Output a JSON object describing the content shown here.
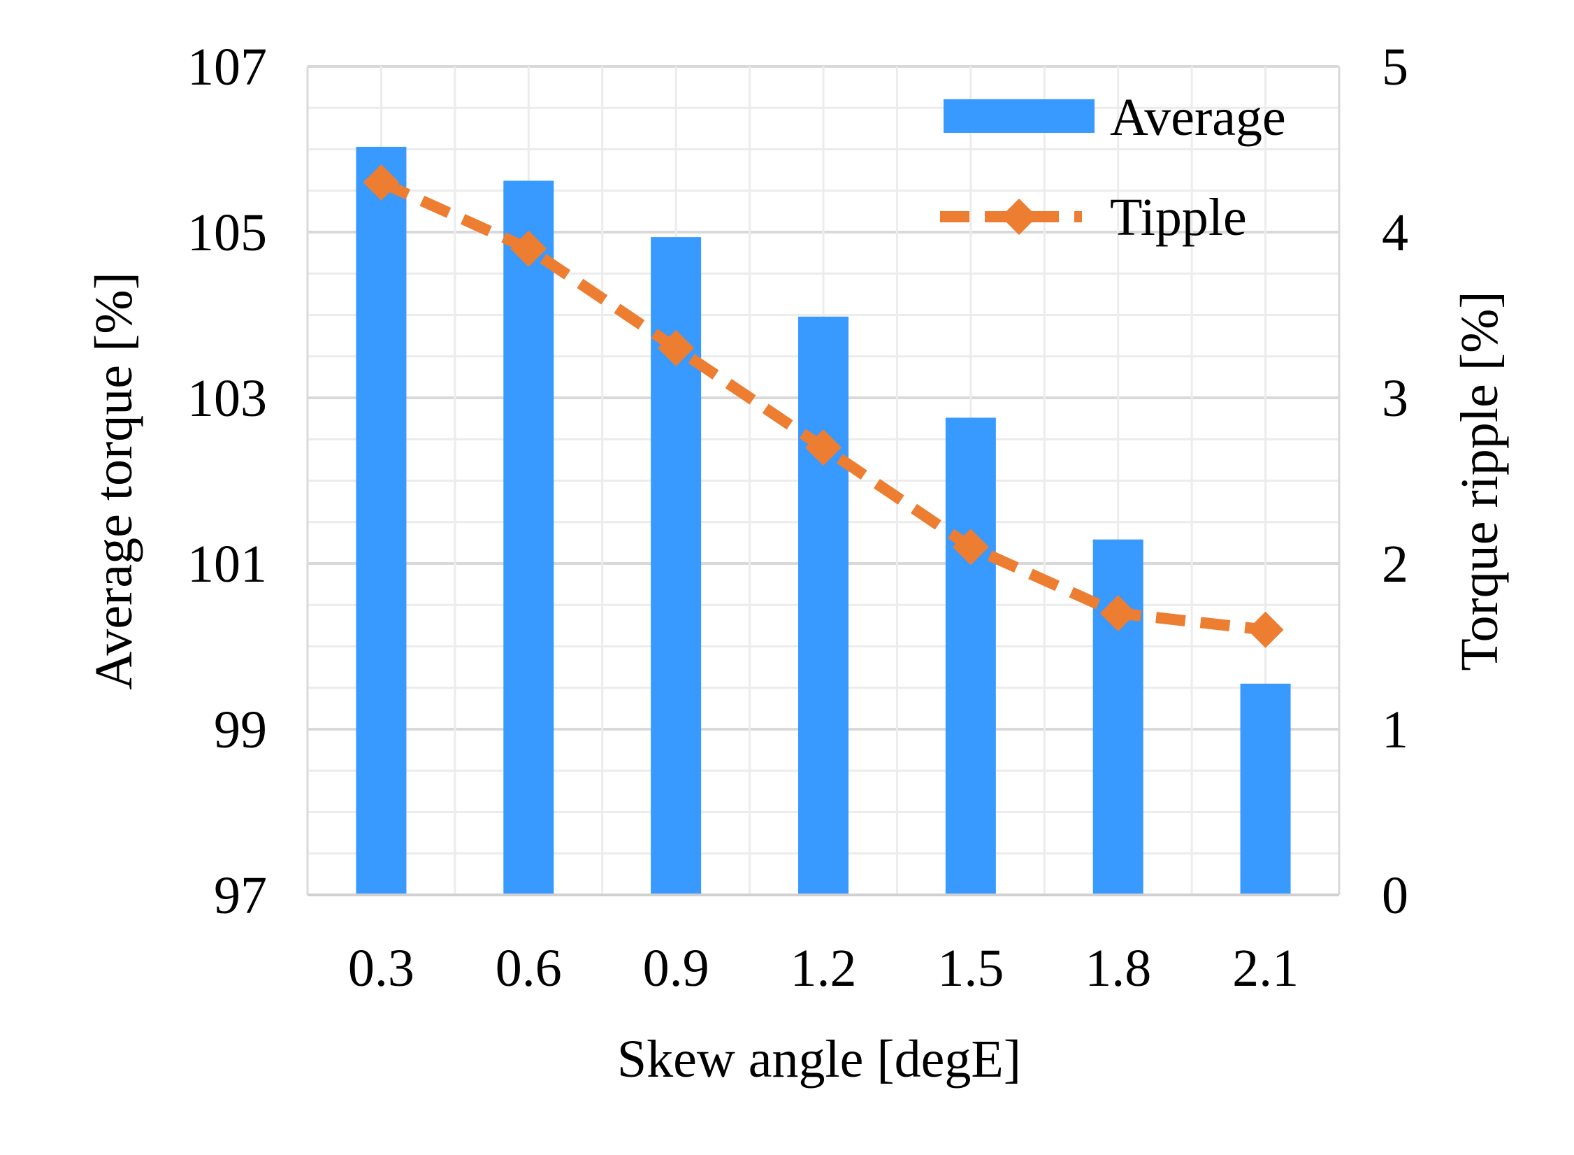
{
  "chart_data": {
    "type": "bar+line",
    "xlabel": "Skew angle [degE]",
    "ylabel_left": "Average torque [%]",
    "ylabel_right": "Torque ripple [%]",
    "categories": [
      "0.3",
      "0.6",
      "0.9",
      "1.2",
      "1.5",
      "1.8",
      "2.1"
    ],
    "ylim_left": [
      97,
      107
    ],
    "yticks_left": [
      "97",
      "99",
      "101",
      "103",
      "105",
      "107"
    ],
    "ylim_right": [
      0,
      5
    ],
    "yticks_right": [
      "0",
      "1",
      "2",
      "3",
      "4",
      "5"
    ],
    "grid": true,
    "legend_position": "top-right",
    "series": [
      {
        "name": "Average",
        "type": "bar",
        "axis": "left",
        "color": "#3899FF",
        "values": [
          106.03,
          105.62,
          104.94,
          103.98,
          102.76,
          101.29,
          99.55
        ]
      },
      {
        "name": "Tipple",
        "type": "line",
        "style": "dashed",
        "marker": "diamond",
        "axis": "right",
        "color": "#ED7D31",
        "values": [
          4.3,
          3.9,
          3.3,
          2.7,
          2.1,
          1.7,
          1.6
        ]
      }
    ]
  }
}
